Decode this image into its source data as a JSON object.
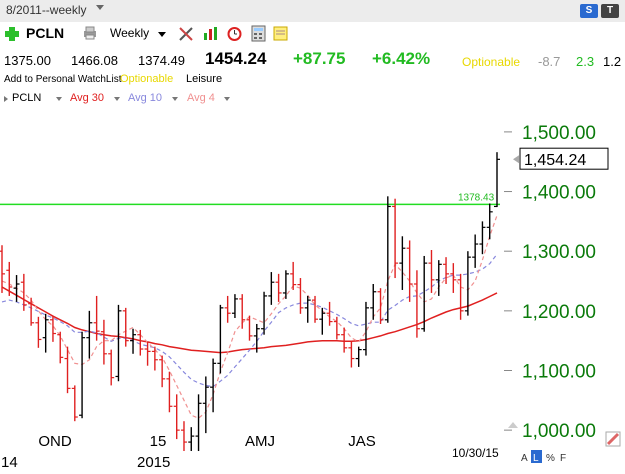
{
  "window": {
    "title": "8/2011--weekly",
    "badge_s": "S",
    "badge_t": "T"
  },
  "toolbar": {
    "symbol": "PCLN",
    "period": "Weekly"
  },
  "quote": {
    "open": "1375.00",
    "high": "1466.08",
    "low": "1374.49",
    "last": "1454.24",
    "change": "+87.75",
    "change_pct": "+6.42%",
    "optionable": "Optionable",
    "v1": "-8.7",
    "v2": "2.3",
    "v3": "1.2"
  },
  "subinfo": {
    "watchlist": "Add to Personal WatchList",
    "optionable": "Optionable",
    "industry": "Leisure"
  },
  "legend": {
    "symbol": "PCLN",
    "avg30": "Avg 30",
    "avg10": "Avg 10",
    "avg4": "Avg 4"
  },
  "colors": {
    "up": "#000000",
    "down": "#e02020",
    "avg30": "#e02020",
    "avg10": "#8888dd",
    "avg4": "#f09090",
    "line": "#22dd22",
    "axis": "#0a7a0a",
    "green": "#22bb22",
    "yellow": "#e8d800"
  },
  "chart_data": {
    "type": "bar",
    "ylim": [
      960,
      1530
    ],
    "yticks": [
      "1,000.00",
      "1,100.00",
      "1,200.00",
      "1,300.00",
      "1,400.00",
      "1,500.00"
    ],
    "ytick_values": [
      1000,
      1100,
      1200,
      1300,
      1400,
      1500
    ],
    "xtick_labels": [
      "OND",
      "15",
      "AMJ",
      "JAS"
    ],
    "bottom_labels": [
      "14",
      "2015"
    ],
    "last_date": "10/30/15",
    "last_value_label": "1,454.24",
    "last_value": 1454.24,
    "horizontal_line": {
      "value": 1378.43,
      "label": "1378.43"
    },
    "ohlc": [
      [
        1300,
        1310,
        1230,
        1262
      ],
      [
        1268,
        1282,
        1225,
        1240
      ],
      [
        1238,
        1260,
        1215,
        1245
      ],
      [
        1248,
        1262,
        1200,
        1210
      ],
      [
        1212,
        1222,
        1175,
        1180
      ],
      [
        1180,
        1190,
        1138,
        1152
      ],
      [
        1155,
        1195,
        1130,
        1185
      ],
      [
        1185,
        1192,
        1148,
        1162
      ],
      [
        1160,
        1165,
        1112,
        1122
      ],
      [
        1120,
        1140,
        1062,
        1070
      ],
      [
        1070,
        1075,
        1015,
        1022
      ],
      [
        1025,
        1165,
        1020,
        1155
      ],
      [
        1155,
        1200,
        1120,
        1180
      ],
      [
        1180,
        1225,
        1150,
        1166
      ],
      [
        1165,
        1185,
        1110,
        1128
      ],
      [
        1128,
        1135,
        1075,
        1088
      ],
      [
        1090,
        1210,
        1082,
        1200
      ],
      [
        1200,
        1205,
        1140,
        1150
      ],
      [
        1150,
        1170,
        1128,
        1160
      ],
      [
        1160,
        1168,
        1125,
        1136
      ],
      [
        1136,
        1148,
        1108,
        1132
      ],
      [
        1132,
        1140,
        1100,
        1118
      ],
      [
        1118,
        1125,
        1072,
        1086
      ],
      [
        1086,
        1098,
        1030,
        1040
      ],
      [
        1040,
        1060,
        985,
        1000
      ],
      [
        1000,
        1015,
        965,
        980
      ],
      [
        980,
        1005,
        965,
        990
      ],
      [
        990,
        1060,
        965,
        1045
      ],
      [
        1045,
        1090,
        995,
        1072
      ],
      [
        1072,
        1120,
        1030,
        1112
      ],
      [
        1112,
        1210,
        1095,
        1205
      ],
      [
        1205,
        1225,
        1180,
        1196
      ],
      [
        1196,
        1228,
        1188,
        1220
      ],
      [
        1220,
        1228,
        1170,
        1185
      ],
      [
        1185,
        1192,
        1150,
        1158
      ],
      [
        1158,
        1178,
        1130,
        1170
      ],
      [
        1170,
        1232,
        1160,
        1225
      ],
      [
        1225,
        1265,
        1210,
        1248
      ],
      [
        1248,
        1262,
        1215,
        1230
      ],
      [
        1230,
        1268,
        1220,
        1262
      ],
      [
        1262,
        1282,
        1235,
        1244
      ],
      [
        1244,
        1255,
        1195,
        1205
      ],
      [
        1205,
        1225,
        1180,
        1218
      ],
      [
        1218,
        1225,
        1180,
        1186
      ],
      [
        1186,
        1205,
        1160,
        1196
      ],
      [
        1196,
        1215,
        1175,
        1182
      ],
      [
        1182,
        1190,
        1152,
        1160
      ],
      [
        1160,
        1172,
        1130,
        1138
      ],
      [
        1138,
        1148,
        1105,
        1120
      ],
      [
        1120,
        1140,
        1106,
        1135
      ],
      [
        1135,
        1215,
        1125,
        1205
      ],
      [
        1205,
        1245,
        1185,
        1232
      ],
      [
        1232,
        1238,
        1178,
        1185
      ],
      [
        1185,
        1392,
        1180,
        1375
      ],
      [
        1375,
        1388,
        1255,
        1280
      ],
      [
        1280,
        1325,
        1235,
        1305
      ],
      [
        1305,
        1318,
        1215,
        1245
      ],
      [
        1245,
        1268,
        1155,
        1170
      ],
      [
        1170,
        1292,
        1165,
        1280
      ],
      [
        1280,
        1302,
        1230,
        1252
      ],
      [
        1252,
        1285,
        1225,
        1278
      ],
      [
        1278,
        1290,
        1245,
        1262
      ],
      [
        1262,
        1280,
        1230,
        1252
      ],
      [
        1252,
        1262,
        1185,
        1200
      ],
      [
        1200,
        1300,
        1192,
        1290
      ],
      [
        1290,
        1328,
        1272,
        1312
      ],
      [
        1312,
        1350,
        1295,
        1340
      ],
      [
        1340,
        1380,
        1320,
        1366
      ],
      [
        1375,
        1466,
        1374,
        1454
      ]
    ],
    "avg30": [
      1240,
      1233,
      1226,
      1219,
      1212,
      1205,
      1198,
      1191,
      1185,
      1179,
      1172,
      1168,
      1165,
      1162,
      1160,
      1158,
      1157,
      1155,
      1153,
      1150,
      1148,
      1145,
      1143,
      1140,
      1138,
      1136,
      1134,
      1133,
      1132,
      1131,
      1130,
      1131,
      1133,
      1135,
      1136,
      1137,
      1138,
      1140,
      1141,
      1142,
      1144,
      1146,
      1148,
      1149,
      1150,
      1150,
      1150,
      1149,
      1149,
      1150,
      1152,
      1155,
      1158,
      1162,
      1165,
      1169,
      1173,
      1177,
      1182,
      1188,
      1193,
      1198,
      1202,
      1205,
      1208,
      1213,
      1218,
      1224,
      1230
    ],
    "avg10": [
      1215,
      1218,
      1215,
      1210,
      1205,
      1199,
      1193,
      1188,
      1182,
      1175,
      1164,
      1164,
      1166,
      1163,
      1156,
      1149,
      1154,
      1154,
      1150,
      1144,
      1141,
      1138,
      1132,
      1123,
      1110,
      1097,
      1085,
      1079,
      1075,
      1073,
      1082,
      1092,
      1106,
      1120,
      1134,
      1149,
      1166,
      1181,
      1197,
      1205,
      1210,
      1213,
      1213,
      1210,
      1206,
      1200,
      1194,
      1187,
      1179,
      1175,
      1178,
      1181,
      1181,
      1201,
      1209,
      1218,
      1224,
      1225,
      1232,
      1240,
      1250,
      1256,
      1260,
      1260,
      1262,
      1265,
      1270,
      1279,
      1295
    ],
    "avg4": [
      1250,
      1245,
      1238,
      1230,
      1218,
      1200,
      1185,
      1175,
      1158,
      1135,
      1112,
      1110,
      1118,
      1140,
      1150,
      1150,
      1160,
      1166,
      1172,
      1160,
      1147,
      1135,
      1122,
      1100,
      1075,
      1050,
      1025,
      1020,
      1030,
      1060,
      1098,
      1130,
      1165,
      1180,
      1190,
      1185,
      1180,
      1195,
      1212,
      1225,
      1242,
      1238,
      1226,
      1210,
      1200,
      1190,
      1182,
      1170,
      1155,
      1148,
      1165,
      1190,
      1205,
      1250,
      1278,
      1265,
      1250,
      1230,
      1215,
      1220,
      1240,
      1255,
      1260,
      1240,
      1235,
      1250,
      1285,
      1325,
      1360
    ]
  }
}
